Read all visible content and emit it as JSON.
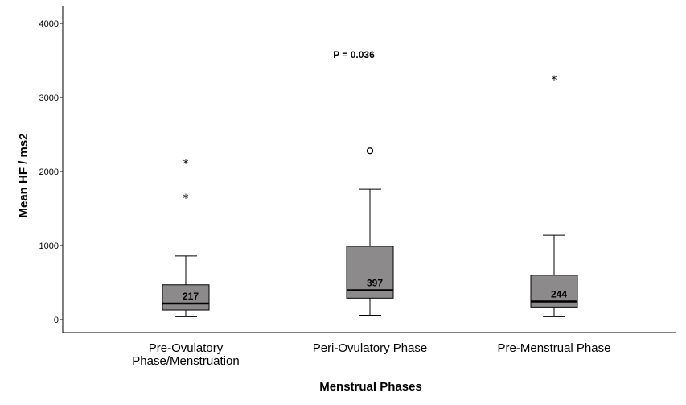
{
  "chart_data": {
    "type": "boxplot",
    "xlabel": "Menstrual Phases",
    "ylabel": "Mean HF / ms2",
    "ylim": [
      -200,
      4200
    ],
    "yticks": [
      0,
      1000,
      2000,
      3000,
      4000
    ],
    "annotation": "P = 0.036",
    "box_color": "#8c8a8a",
    "categories": [
      "Pre-Ovulatory Phase/Menstruation",
      "Peri-Ovulatory Phase",
      "Pre-Menstrual Phase"
    ],
    "category_lines": [
      [
        "Pre-Ovulatory",
        "Phase/Menstruation"
      ],
      [
        "Peri-Ovulatory Phase"
      ],
      [
        "Pre-Menstrual Phase"
      ]
    ],
    "boxes": [
      {
        "category": "Pre-Ovulatory Phase/Menstruation",
        "min": 40,
        "q1": 130,
        "median": 217,
        "q3": 470,
        "max": 860,
        "median_label": "217",
        "outliers": [
          {
            "value": 2120,
            "marker": "star"
          },
          {
            "value": 1650,
            "marker": "star"
          }
        ]
      },
      {
        "category": "Peri-Ovulatory Phase",
        "min": 60,
        "q1": 290,
        "median": 397,
        "q3": 990,
        "max": 1760,
        "median_label": "397",
        "outliers": [
          {
            "value": 2280,
            "marker": "circle"
          }
        ]
      },
      {
        "category": "Pre-Menstrual Phase",
        "min": 40,
        "q1": 170,
        "median": 244,
        "q3": 600,
        "max": 1140,
        "median_label": "244",
        "outliers": [
          {
            "value": 3250,
            "marker": "star"
          }
        ]
      }
    ]
  }
}
